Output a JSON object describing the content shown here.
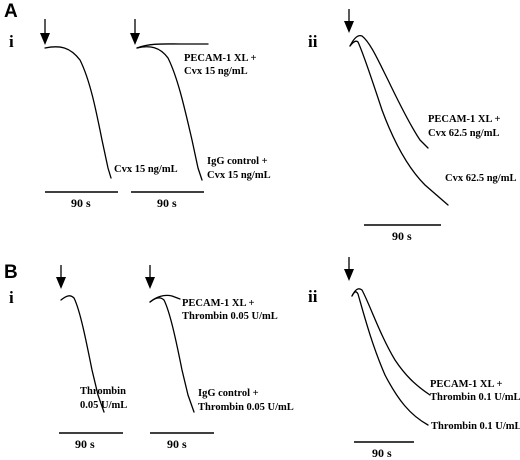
{
  "panels": {
    "A": {
      "letter": "A",
      "i": "i",
      "ii": "ii"
    },
    "B": {
      "letter": "B",
      "i": "i",
      "ii": "ii"
    }
  },
  "chart_data": [
    {
      "type": "line",
      "panel": "A-i-left",
      "series": [
        {
          "name": "Cvx 15 ng/mL",
          "label_lines": [
            "Cvx 15 ng/mL"
          ],
          "style": "aggregation"
        }
      ],
      "scale_bar": "90 s"
    },
    {
      "type": "line",
      "panel": "A-i-right",
      "series": [
        {
          "name": "PECAM-1 XL + Cvx 15 ng/mL",
          "label_lines": [
            "PECAM-1 XL +",
            "Cvx 15 ng/mL"
          ],
          "style": "flat"
        },
        {
          "name": "IgG control + Cvx 15 ng/mL",
          "label_lines": [
            "IgG control +",
            "Cvx 15 ng/mL"
          ],
          "style": "aggregation"
        }
      ],
      "scale_bar": "90 s"
    },
    {
      "type": "line",
      "panel": "A-ii",
      "series": [
        {
          "name": "PECAM-1 XL + Cvx 62.5 ng/mL",
          "label_lines": [
            "PECAM-1 XL +",
            "Cvx 62.5 ng/mL"
          ],
          "style": "partial"
        },
        {
          "name": "Cvx 62.5 ng/mL",
          "label_lines": [
            "Cvx 62.5 ng/mL"
          ],
          "style": "full"
        }
      ],
      "scale_bar": "90 s"
    },
    {
      "type": "line",
      "panel": "B-i-left",
      "series": [
        {
          "name": "Thrombin 0.05 U/mL",
          "label_lines": [
            "Thrombin",
            "0.05 U/mL"
          ],
          "style": "aggregation"
        }
      ],
      "scale_bar": "90 s"
    },
    {
      "type": "line",
      "panel": "B-i-right",
      "series": [
        {
          "name": "PECAM-1 XL + Thrombin 0.05 U/mL",
          "label_lines": [
            "PECAM-1 XL +",
            "Thrombin 0.05 U/mL"
          ],
          "style": "flat"
        },
        {
          "name": "IgG control + Thrombin 0.05 U/mL",
          "label_lines": [
            "IgG control +",
            "Thrombin 0.05 U/mL"
          ],
          "style": "aggregation"
        }
      ],
      "scale_bar": "90 s"
    },
    {
      "type": "line",
      "panel": "B-ii",
      "series": [
        {
          "name": "PECAM-1 XL + Thrombin 0.1 U/mL",
          "label_lines": [
            "PECAM-1 XL +",
            "Thrombin 0.1 U/mL"
          ],
          "style": "partial"
        },
        {
          "name": "Thrombin 0.1 U/mL",
          "label_lines": [
            "Thrombin 0.1 U/mL"
          ],
          "style": "full"
        }
      ],
      "scale_bar": "90 s"
    }
  ]
}
